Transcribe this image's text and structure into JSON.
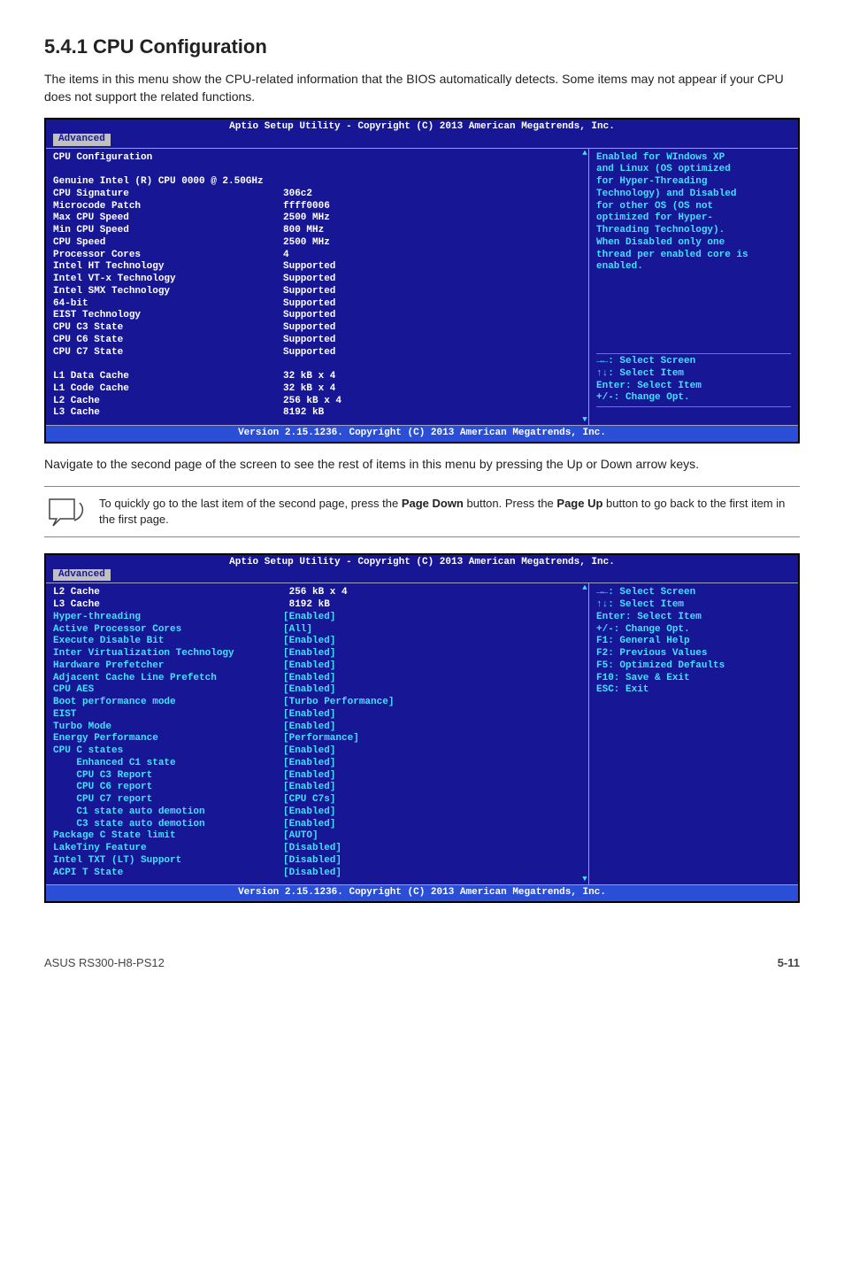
{
  "heading": "5.4.1     CPU Configuration",
  "intro": "The items in this menu show the CPU-related information that the BIOS automatically detects. Some items may not appear if your CPU does not support the related functions.",
  "bios_title": "Aptio Setup Utility - Copyright (C) 2013 American Megatrends, Inc.",
  "tab_label": "Advanced",
  "bios_footer": "Version 2.15.1236. Copyright (C) 2013 American Megatrends, Inc.",
  "panel1": {
    "left_top": "CPU Configuration",
    "left_sub": "Genuine Intel (R) CPU 0000 @ 2.50GHz",
    "rows": [
      {
        "k": "CPU Signature",
        "v": "306c2",
        "cls": ""
      },
      {
        "k": "Microcode Patch",
        "v": "ffff0006",
        "cls": ""
      },
      {
        "k": "Max CPU Speed",
        "v": "2500 MHz",
        "cls": ""
      },
      {
        "k": "Min CPU Speed",
        "v": "800 MHz",
        "cls": ""
      },
      {
        "k": "CPU Speed",
        "v": "2500 MHz",
        "cls": ""
      },
      {
        "k": "Processor Cores",
        "v": "4",
        "cls": ""
      },
      {
        "k": "Intel HT Technology",
        "v": "Supported",
        "cls": ""
      },
      {
        "k": "Intel VT-x Technology",
        "v": "Supported",
        "cls": ""
      },
      {
        "k": "Intel SMX Technology",
        "v": "Supported",
        "cls": ""
      },
      {
        "k": "64-bit",
        "v": "Supported",
        "cls": ""
      },
      {
        "k": "EIST Technology",
        "v": "Supported",
        "cls": ""
      },
      {
        "k": "CPU C3 State",
        "v": "Supported",
        "cls": ""
      },
      {
        "k": "CPU C6 State",
        "v": "Supported",
        "cls": ""
      },
      {
        "k": "CPU C7 State",
        "v": "Supported",
        "cls": ""
      }
    ],
    "rows2": [
      {
        "k": "L1 Data Cache",
        "v": "32 kB x 4"
      },
      {
        "k": "L1 Code Cache",
        "v": "32 kB x 4"
      },
      {
        "k": "L2 Cache",
        "v": "256 kB x 4"
      },
      {
        "k": "L3 Cache",
        "v": "8192 kB"
      }
    ],
    "help": [
      "Enabled for WIndows XP",
      "and Linux (OS optimized",
      "for Hyper-Threading",
      "Technology) and Disabled",
      "for other OS (OS not",
      "optimized for Hyper-",
      "Threading Technology).",
      "When Disabled only one",
      "thread per enabled core is",
      "enabled."
    ],
    "nav": [
      "→←: Select Screen",
      "↑↓:  Select Item",
      "Enter: Select Item",
      "+/-: Change Opt."
    ]
  },
  "midtext": "Navigate to the second page of the screen to see the rest of items in this menu by pressing the Up or Down arrow keys.",
  "note_html_a": "To quickly go to the last item of the second page, press the ",
  "note_b1": "Page Down",
  "note_mid": " button. Press the ",
  "note_b2": "Page Up",
  "note_end": " button to go back to the first item in the first page.",
  "panel2": {
    "rows_top": [
      {
        "k": "L2 Cache",
        "v": " 256 kB x 4",
        "cls": "w"
      },
      {
        "k": "L3 Cache",
        "v": " 8192 kB",
        "cls": "w"
      }
    ],
    "rows": [
      {
        "k": "Hyper-threading",
        "v": "[Enabled]"
      },
      {
        "k": "Active Processor Cores",
        "v": "[All]"
      },
      {
        "k": "Execute Disable Bit",
        "v": "[Enabled]"
      },
      {
        "k": "Inter Virtualization Technology",
        "v": "[Enabled]"
      },
      {
        "k": "Hardware Prefetcher",
        "v": "[Enabled]"
      },
      {
        "k": "Adjacent Cache Line Prefetch",
        "v": "[Enabled]"
      },
      {
        "k": "CPU AES",
        "v": "[Enabled]"
      },
      {
        "k": "Boot performance mode",
        "v": "[Turbo Performance]"
      },
      {
        "k": "EIST",
        "v": "[Enabled]"
      },
      {
        "k": "Turbo Mode",
        "v": "[Enabled]"
      },
      {
        "k": "Energy Performance",
        "v": "[Performance]"
      },
      {
        "k": "CPU C states",
        "v": "[Enabled]"
      },
      {
        "k": "    Enhanced C1 state",
        "v": "[Enabled]"
      },
      {
        "k": "    CPU C3 Report",
        "v": "[Enabled]"
      },
      {
        "k": "    CPU C6 report",
        "v": "[Enabled]"
      },
      {
        "k": "    CPU C7 report",
        "v": "[CPU C7s]"
      },
      {
        "k": "    C1 state auto demotion",
        "v": "[Enabled]"
      },
      {
        "k": "    C3 state auto demotion",
        "v": "[Enabled]"
      },
      {
        "k": "Package C State limit",
        "v": "[AUTO]"
      },
      {
        "k": "LakeTiny Feature",
        "v": "[Disabled]"
      },
      {
        "k": "Intel TXT (LT) Support",
        "v": "[Disabled]"
      },
      {
        "k": "ACPI T State",
        "v": "[Disabled]"
      }
    ],
    "nav": [
      "→←: Select Screen",
      "↑↓:  Select Item",
      "Enter: Select Item",
      "+/-: Change Opt.",
      "F1: General Help",
      "F2: Previous Values",
      "F5: Optimized Defaults",
      "F10: Save & Exit",
      "ESC: Exit"
    ]
  },
  "footer_left": "ASUS RS300-H8-PS12",
  "footer_right": "5-11",
  "colors": {
    "bios_bg": "#171796",
    "white": "#ffffff",
    "cyan": "#44e0ff",
    "footer_bg": "#2a4fd6",
    "tab_bg": "#c0c0c0"
  }
}
